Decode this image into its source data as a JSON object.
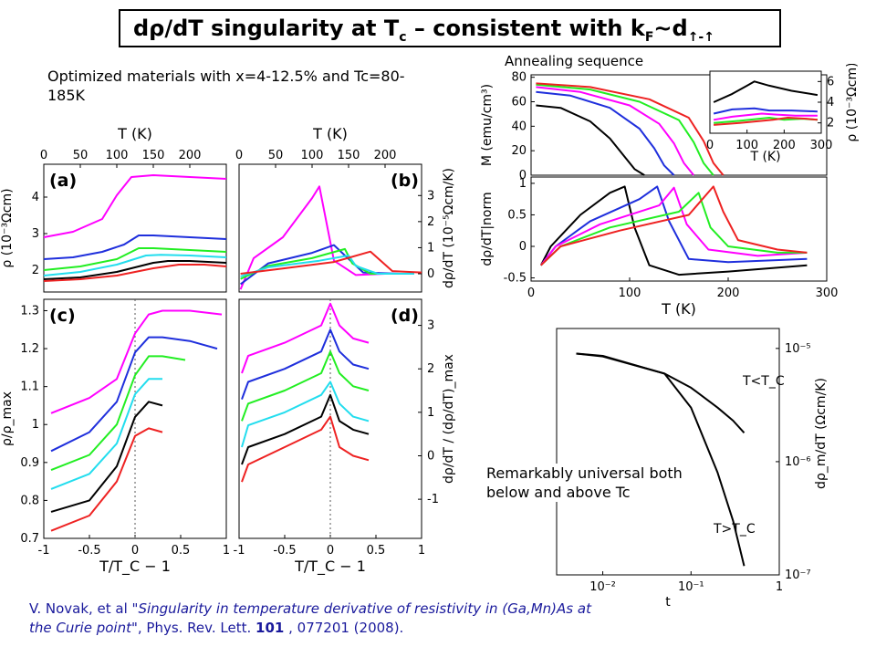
{
  "title": {
    "main": "dρ/dT singularity at T",
    "sub_c": "c",
    "mid": " – consistent with k",
    "sub_f": "F",
    "tail": "~d",
    "sub_arrows": "↑-↑"
  },
  "subtitle": "Optimized materials with x=4-12.5% and Tc=80-185K",
  "annealing_label": "Annealing sequence",
  "universal_note": "Remarkably universal both below and above Tc",
  "citation": {
    "authors": "V. Novak, et al \"",
    "paper_title": "Singularity in temperature derivative of resistivity in (Ga,Mn)As at the Curie point\"",
    "journal": ", Phys. Rev. Lett. ",
    "volume": "101",
    "rest": " , 077201 (2008)."
  },
  "colors": {
    "magenta": "#ff00ff",
    "blue": "#1f2fdc",
    "green": "#22ee22",
    "cyan": "#22ddee",
    "black": "#000000",
    "red": "#ee2222"
  },
  "chart_data": [
    {
      "panel": "a",
      "type": "line",
      "xlabel": "T  (K)",
      "ylabel": "ρ  (10⁻³Ωcm)",
      "xticks": [
        "0",
        "50",
        "100",
        "150",
        "200"
      ],
      "yticks": [
        "2",
        "3",
        "4"
      ],
      "xlim": [
        0,
        250
      ],
      "ylim": [
        1.4,
        4.9
      ],
      "series": [
        {
          "color": "magenta",
          "x": [
            0,
            40,
            80,
            100,
            120,
            150,
            200,
            250
          ],
          "y": [
            2.9,
            3.05,
            3.4,
            4.05,
            4.55,
            4.6,
            4.55,
            4.5
          ]
        },
        {
          "color": "blue",
          "x": [
            0,
            40,
            80,
            110,
            130,
            150,
            200,
            250
          ],
          "y": [
            2.3,
            2.35,
            2.5,
            2.7,
            2.95,
            2.95,
            2.9,
            2.85
          ]
        },
        {
          "color": "green",
          "x": [
            0,
            50,
            100,
            130,
            150,
            200,
            250
          ],
          "y": [
            2.0,
            2.1,
            2.3,
            2.6,
            2.6,
            2.55,
            2.5
          ]
        },
        {
          "color": "cyan",
          "x": [
            0,
            50,
            100,
            140,
            160,
            200,
            250
          ],
          "y": [
            1.85,
            1.95,
            2.15,
            2.4,
            2.42,
            2.4,
            2.35
          ]
        },
        {
          "color": "black",
          "x": [
            0,
            50,
            100,
            150,
            170,
            200,
            250
          ],
          "y": [
            1.75,
            1.8,
            1.95,
            2.2,
            2.25,
            2.25,
            2.2
          ]
        },
        {
          "color": "red",
          "x": [
            0,
            50,
            100,
            150,
            185,
            220,
            250
          ],
          "y": [
            1.7,
            1.75,
            1.85,
            2.05,
            2.15,
            2.15,
            2.1
          ]
        }
      ]
    },
    {
      "panel": "b",
      "type": "line",
      "xlabel": "T  (K)",
      "ylabel": "dρ/dT  (10⁻⁵Ωcm/K)",
      "xticks": [
        "0",
        "50",
        "100",
        "150",
        "200"
      ],
      "yticks": [
        "0",
        "1",
        "2",
        "3"
      ],
      "xlim": [
        0,
        250
      ],
      "ylim": [
        -0.7,
        4.2
      ],
      "series": [
        {
          "color": "magenta",
          "x": [
            2,
            20,
            60,
            100,
            110,
            130,
            160,
            200
          ],
          "y": [
            -0.6,
            0.6,
            1.4,
            2.9,
            3.35,
            0.5,
            -0.05,
            0.0
          ]
        },
        {
          "color": "blue",
          "x": [
            2,
            40,
            100,
            130,
            145,
            170,
            220
          ],
          "y": [
            -0.4,
            0.4,
            0.8,
            1.1,
            0.7,
            0.05,
            0.0
          ]
        },
        {
          "color": "green",
          "x": [
            2,
            40,
            100,
            145,
            155,
            180,
            230
          ],
          "y": [
            -0.2,
            0.3,
            0.6,
            0.95,
            0.4,
            0.0,
            0.0
          ]
        },
        {
          "color": "cyan",
          "x": [
            2,
            40,
            110,
            150,
            160,
            190,
            240
          ],
          "y": [
            -0.1,
            0.25,
            0.5,
            0.7,
            0.3,
            0.0,
            0.0
          ]
        },
        {
          "color": "red",
          "x": [
            2,
            60,
            130,
            180,
            190,
            210,
            250
          ],
          "y": [
            0.0,
            0.2,
            0.45,
            0.85,
            0.6,
            0.1,
            0.05
          ]
        }
      ]
    },
    {
      "panel": "c",
      "type": "line",
      "xlabel": "T/T_C − 1",
      "ylabel": "ρ/ρ_max",
      "xticks": [
        "-1",
        "-0.5",
        "0",
        "0.5",
        "1"
      ],
      "yticks": [
        "0.7",
        "0.8",
        "0.9",
        "1",
        "1.1",
        "1.2",
        "1.3"
      ],
      "xlim": [
        -1,
        1
      ],
      "ylim": [
        0.7,
        1.33
      ],
      "series": [
        {
          "color": "magenta",
          "x": [
            -0.92,
            -0.5,
            -0.2,
            0,
            0.15,
            0.3,
            0.6,
            0.95
          ],
          "y": [
            1.03,
            1.07,
            1.12,
            1.24,
            1.29,
            1.3,
            1.3,
            1.29
          ]
        },
        {
          "color": "blue",
          "x": [
            -0.92,
            -0.5,
            -0.2,
            0,
            0.15,
            0.3,
            0.6,
            0.9
          ],
          "y": [
            0.93,
            0.98,
            1.06,
            1.19,
            1.23,
            1.23,
            1.22,
            1.2
          ]
        },
        {
          "color": "green",
          "x": [
            -0.92,
            -0.5,
            -0.2,
            0,
            0.15,
            0.3,
            0.55
          ],
          "y": [
            0.88,
            0.92,
            1.0,
            1.13,
            1.18,
            1.18,
            1.17
          ]
        },
        {
          "color": "cyan",
          "x": [
            -0.92,
            -0.5,
            -0.2,
            0,
            0.15,
            0.3
          ],
          "y": [
            0.83,
            0.87,
            0.95,
            1.08,
            1.12,
            1.12
          ]
        },
        {
          "color": "black",
          "x": [
            -0.92,
            -0.5,
            -0.2,
            0,
            0.15,
            0.3
          ],
          "y": [
            0.77,
            0.8,
            0.89,
            1.02,
            1.06,
            1.05
          ]
        },
        {
          "color": "red",
          "x": [
            -0.92,
            -0.5,
            -0.2,
            0,
            0.15,
            0.3
          ],
          "y": [
            0.72,
            0.76,
            0.85,
            0.97,
            0.99,
            0.98
          ]
        }
      ]
    },
    {
      "panel": "d",
      "type": "line",
      "xlabel": "T/T_C − 1",
      "ylabel": "dρ/dT / (dρ/dT)_max",
      "xticks": [
        "-1",
        "-0.5",
        "0",
        "0.5",
        "1"
      ],
      "yticks": [
        "-1",
        "0",
        "1",
        "2",
        "3"
      ],
      "xlim": [
        -1,
        1
      ],
      "ylim": [
        -1.9,
        3.6
      ],
      "series": [
        {
          "color": "magenta",
          "x": [
            -0.97,
            -0.9,
            -0.5,
            -0.1,
            0,
            0.1,
            0.25,
            0.42
          ],
          "y": [
            1.9,
            2.3,
            2.6,
            3.0,
            3.5,
            3.0,
            2.7,
            2.6
          ]
        },
        {
          "color": "blue",
          "x": [
            -0.97,
            -0.9,
            -0.5,
            -0.1,
            0,
            0.1,
            0.25,
            0.42
          ],
          "y": [
            1.3,
            1.7,
            2.0,
            2.4,
            2.9,
            2.4,
            2.1,
            2.0
          ]
        },
        {
          "color": "green",
          "x": [
            -0.97,
            -0.9,
            -0.5,
            -0.1,
            0,
            0.1,
            0.25,
            0.42
          ],
          "y": [
            0.8,
            1.2,
            1.5,
            1.9,
            2.4,
            1.9,
            1.6,
            1.5
          ]
        },
        {
          "color": "cyan",
          "x": [
            -0.97,
            -0.9,
            -0.5,
            -0.1,
            0,
            0.1,
            0.25,
            0.42
          ],
          "y": [
            0.2,
            0.7,
            1.0,
            1.4,
            1.7,
            1.2,
            0.9,
            0.8
          ]
        },
        {
          "color": "black",
          "x": [
            -0.97,
            -0.9,
            -0.5,
            -0.1,
            0,
            0.1,
            0.25,
            0.42
          ],
          "y": [
            -0.2,
            0.2,
            0.5,
            0.9,
            1.4,
            0.8,
            0.6,
            0.5
          ]
        },
        {
          "color": "red",
          "x": [
            -0.97,
            -0.9,
            -0.5,
            -0.1,
            0,
            0.1,
            0.25,
            0.42
          ],
          "y": [
            -0.6,
            -0.2,
            0.2,
            0.6,
            0.9,
            0.2,
            0.0,
            -0.1
          ]
        }
      ]
    },
    {
      "panel": "magnetization",
      "type": "line",
      "xlabel": "",
      "ylabel": "M (emu/cm³)",
      "xticks": [],
      "yticks": [
        "0",
        "20",
        "40",
        "60",
        "80"
      ],
      "xlim": [
        0,
        300
      ],
      "ylim": [
        0,
        82
      ],
      "series": [
        {
          "color": "black",
          "x": [
            5,
            30,
            60,
            80,
            95,
            105,
            115
          ],
          "y": [
            57,
            55,
            44,
            30,
            15,
            5,
            0
          ]
        },
        {
          "color": "blue",
          "x": [
            5,
            40,
            80,
            110,
            125,
            135,
            145
          ],
          "y": [
            68,
            65,
            55,
            38,
            22,
            8,
            0
          ]
        },
        {
          "color": "magenta",
          "x": [
            5,
            50,
            100,
            130,
            145,
            155,
            165
          ],
          "y": [
            72,
            68,
            57,
            42,
            26,
            10,
            0
          ]
        },
        {
          "color": "green",
          "x": [
            5,
            60,
            110,
            150,
            165,
            175,
            185
          ],
          "y": [
            74,
            70,
            60,
            45,
            27,
            10,
            0
          ]
        },
        {
          "color": "red",
          "x": [
            5,
            60,
            120,
            160,
            175,
            185,
            195
          ],
          "y": [
            75,
            72,
            62,
            47,
            28,
            10,
            0
          ]
        }
      ]
    },
    {
      "panel": "resistivity-inset",
      "type": "line",
      "xlabel": "T  (K)",
      "ylabel": "ρ  (10⁻³Ωcm)",
      "xticks": [
        "0",
        "100",
        "200",
        "300"
      ],
      "yticks": [
        "2",
        "4",
        "6"
      ],
      "xlim": [
        0,
        300
      ],
      "ylim": [
        1,
        7
      ],
      "series": [
        {
          "color": "black",
          "x": [
            10,
            60,
            100,
            120,
            160,
            220,
            290
          ],
          "y": [
            4.0,
            4.8,
            5.6,
            6.0,
            5.6,
            5.1,
            4.7
          ]
        },
        {
          "color": "blue",
          "x": [
            10,
            60,
            120,
            160,
            220,
            290
          ],
          "y": [
            2.9,
            3.3,
            3.4,
            3.2,
            3.2,
            3.1
          ]
        },
        {
          "color": "magenta",
          "x": [
            10,
            60,
            140,
            180,
            230,
            290
          ],
          "y": [
            2.3,
            2.6,
            2.9,
            2.8,
            2.7,
            2.7
          ]
        },
        {
          "color": "green",
          "x": [
            10,
            80,
            160,
            200,
            250,
            290
          ],
          "y": [
            2.0,
            2.2,
            2.5,
            2.3,
            2.4,
            2.3
          ]
        },
        {
          "color": "red",
          "x": [
            10,
            80,
            170,
            210,
            260,
            290
          ],
          "y": [
            1.8,
            2.0,
            2.3,
            2.5,
            2.4,
            2.3
          ]
        }
      ]
    },
    {
      "panel": "derivative-norm",
      "type": "line",
      "xlabel": "T    (K)",
      "ylabel": "dρ/dT|norm",
      "xticks": [
        "0",
        "100",
        "200",
        "300"
      ],
      "yticks": [
        "-0.5",
        "0",
        "0.5",
        "1"
      ],
      "xlim": [
        0,
        300
      ],
      "ylim": [
        -0.55,
        1.1
      ],
      "series": [
        {
          "color": "black",
          "x": [
            10,
            20,
            50,
            80,
            95,
            105,
            120,
            150,
            200,
            280
          ],
          "y": [
            -0.3,
            0.0,
            0.5,
            0.85,
            0.95,
            0.3,
            -0.3,
            -0.45,
            -0.4,
            -0.3
          ]
        },
        {
          "color": "blue",
          "x": [
            10,
            25,
            60,
            110,
            128,
            140,
            160,
            200,
            280
          ],
          "y": [
            -0.3,
            0.0,
            0.4,
            0.75,
            0.95,
            0.4,
            -0.2,
            -0.25,
            -0.2
          ]
        },
        {
          "color": "magenta",
          "x": [
            10,
            25,
            70,
            130,
            145,
            158,
            180,
            230,
            280
          ],
          "y": [
            -0.3,
            0.0,
            0.35,
            0.65,
            0.93,
            0.35,
            -0.05,
            -0.15,
            -0.1
          ]
        },
        {
          "color": "green",
          "x": [
            10,
            30,
            80,
            150,
            170,
            182,
            200,
            250,
            280
          ],
          "y": [
            -0.3,
            0.0,
            0.3,
            0.55,
            0.85,
            0.3,
            0.0,
            -0.1,
            -0.1
          ]
        },
        {
          "color": "red",
          "x": [
            10,
            30,
            90,
            160,
            185,
            195,
            210,
            250,
            280
          ],
          "y": [
            -0.3,
            0.0,
            0.25,
            0.5,
            0.95,
            0.55,
            0.1,
            -0.05,
            -0.1
          ]
        }
      ]
    },
    {
      "panel": "universal",
      "type": "line",
      "scale": "log-log",
      "xlabel": "t",
      "ylabel": "dρ_m/dT   (Ωcm/K)",
      "xticks": [
        "10⁻²",
        "10⁻¹",
        "1"
      ],
      "yticks": [
        "10⁻⁵",
        "10⁻⁶",
        "10⁻⁷"
      ],
      "xlim": [
        0.003,
        1
      ],
      "ylim": [
        1e-07,
        1.5e-05
      ],
      "annotations": [
        "T<T_C",
        "T>T_C"
      ],
      "series": [
        {
          "name": "T<T_C",
          "color": "black",
          "x": [
            0.005,
            0.01,
            0.05,
            0.1,
            0.2,
            0.3,
            0.4
          ],
          "y": [
            9e-06,
            8.5e-06,
            6e-06,
            4.5e-06,
            3e-06,
            2.3e-06,
            1.8e-06
          ]
        },
        {
          "name": "T>T_C",
          "color": "black",
          "x": [
            0.005,
            0.01,
            0.05,
            0.1,
            0.2,
            0.3,
            0.4
          ],
          "y": [
            9e-06,
            8.6e-06,
            6e-06,
            3e-06,
            8e-07,
            3e-07,
            1.2e-07
          ]
        }
      ]
    }
  ]
}
